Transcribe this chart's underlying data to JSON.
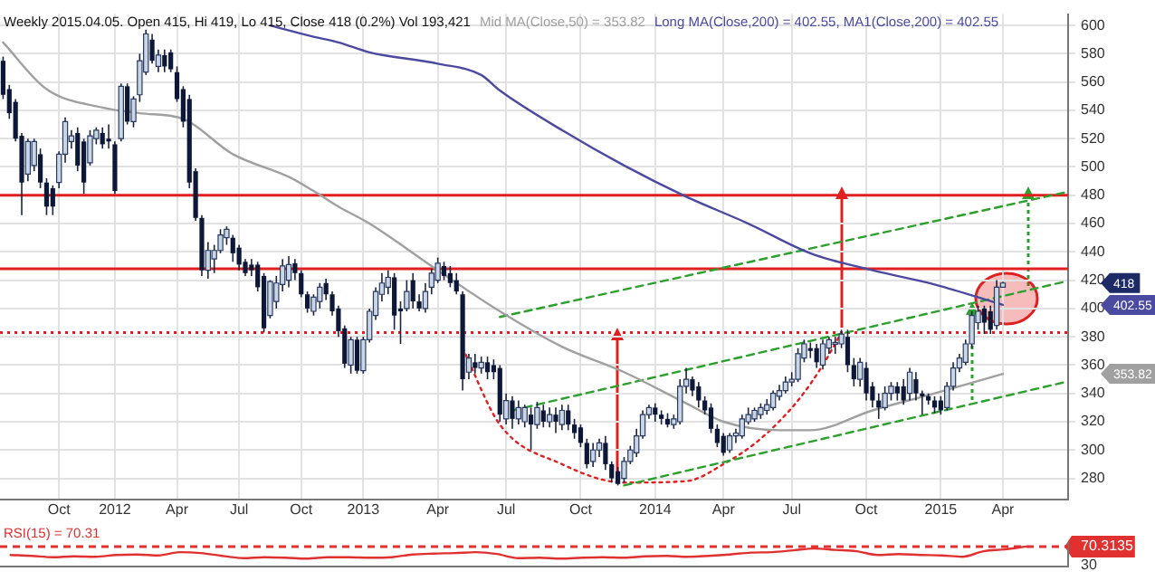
{
  "chart_data": [
    {
      "type": "candlestick",
      "title": "Weekly 2015.04.05. Open 415, Hi 419, Lo 415, Close 418 (0.2%) Vol 193,421",
      "categories": [
        null,
        null,
        null,
        null,
        null,
        null,
        null,
        null,
        null,
        "Oct",
        null,
        null,
        null,
        null,
        null,
        null,
        null,
        null,
        "2012",
        null,
        null,
        null,
        null,
        null,
        null,
        null,
        null,
        null,
        "Apr",
        null,
        null,
        null,
        null,
        null,
        null,
        null,
        null,
        null,
        "Jul",
        null,
        null,
        null,
        null,
        null,
        null,
        null,
        null,
        null,
        "Oct",
        null,
        null,
        null,
        null,
        null,
        null,
        null,
        null,
        null,
        "2013",
        null,
        null,
        null,
        null,
        null,
        null,
        null,
        null,
        null,
        null,
        null,
        "Apr",
        null,
        null,
        null,
        null,
        null,
        null,
        null,
        null,
        null,
        null,
        "Jul",
        null,
        null,
        null,
        null,
        null,
        null,
        null,
        null,
        null,
        null,
        null,
        "Oct",
        null,
        null,
        null,
        null,
        null,
        null,
        null,
        null,
        null,
        null,
        null,
        "2014",
        null,
        null,
        null,
        null,
        null,
        null,
        null,
        null,
        null,
        null,
        "Apr",
        null,
        null,
        null,
        null,
        null,
        null,
        null,
        null,
        null,
        null,
        "Jul",
        null,
        null,
        null,
        null,
        null,
        null,
        null,
        null,
        null,
        null,
        null,
        "Oct",
        null,
        null,
        null,
        null,
        null,
        null,
        null,
        null,
        null,
        null,
        null,
        "2015",
        null,
        null,
        null,
        null,
        null,
        null,
        null,
        null,
        null,
        "Apr",
        null,
        null,
        null,
        null,
        null,
        null,
        null,
        null,
        null,
        null
      ],
      "ohlc": [
        [
          575,
          578,
          548,
          551
        ],
        [
          555,
          558,
          534,
          538
        ],
        [
          546,
          548,
          518,
          520
        ],
        [
          522,
          524,
          466,
          489
        ],
        [
          495,
          520,
          490,
          518
        ],
        [
          501,
          520,
          497,
          518
        ],
        [
          509,
          513,
          485,
          489
        ],
        [
          489,
          492,
          466,
          472
        ],
        [
          485,
          487,
          466,
          472
        ],
        [
          489,
          511,
          485,
          509
        ],
        [
          509,
          535,
          503,
          532
        ],
        [
          518,
          526,
          513,
          522
        ],
        [
          524,
          528,
          497,
          501
        ],
        [
          518,
          520,
          481,
          489
        ],
        [
          503,
          526,
          501,
          522
        ],
        [
          520,
          528,
          516,
          526
        ],
        [
          524,
          528,
          513,
          516
        ],
        [
          520,
          530,
          513,
          518
        ],
        [
          516,
          518,
          481,
          483
        ],
        [
          520,
          559,
          518,
          557
        ],
        [
          557,
          559,
          530,
          532
        ],
        [
          532,
          550,
          528,
          548
        ],
        [
          551,
          580,
          546,
          575
        ],
        [
          567,
          597,
          565,
          594
        ],
        [
          590,
          594,
          573,
          575
        ],
        [
          571,
          583,
          567,
          579
        ],
        [
          579,
          583,
          567,
          571
        ],
        [
          581,
          583,
          567,
          569
        ],
        [
          567,
          571,
          546,
          548
        ],
        [
          555,
          557,
          528,
          532
        ],
        [
          548,
          551,
          485,
          489
        ],
        [
          497,
          499,
          462,
          464
        ],
        [
          464,
          466,
          423,
          427
        ],
        [
          427,
          447,
          421,
          441
        ],
        [
          435,
          445,
          425,
          441
        ],
        [
          441,
          456,
          439,
          452
        ],
        [
          450,
          458,
          445,
          456
        ],
        [
          450,
          452,
          433,
          439
        ],
        [
          443,
          445,
          427,
          431
        ],
        [
          433,
          435,
          423,
          425
        ],
        [
          431,
          435,
          423,
          427
        ],
        [
          431,
          433,
          412,
          415
        ],
        [
          423,
          425,
          383,
          386
        ],
        [
          395,
          420,
          393,
          419
        ],
        [
          405,
          423,
          400,
          418
        ],
        [
          417,
          435,
          412,
          430
        ],
        [
          420,
          437,
          415,
          431
        ],
        [
          432,
          435,
          420,
          425
        ],
        [
          425,
          427,
          408,
          410
        ],
        [
          410,
          412,
          397,
          400
        ],
        [
          398,
          410,
          395,
          408
        ],
        [
          405,
          418,
          400,
          415
        ],
        [
          418,
          421,
          406,
          410
        ],
        [
          410,
          412,
          395,
          398
        ],
        [
          400,
          402,
          380,
          384
        ],
        [
          386,
          388,
          358,
          361
        ],
        [
          360,
          380,
          354,
          378
        ],
        [
          378,
          380,
          354,
          356
        ],
        [
          356,
          380,
          354,
          378
        ],
        [
          378,
          400,
          376,
          398
        ],
        [
          395,
          415,
          392,
          412
        ],
        [
          410,
          425,
          405,
          418
        ],
        [
          415,
          427,
          410,
          422
        ],
        [
          422,
          425,
          385,
          395
        ],
        [
          400,
          405,
          375,
          398
        ],
        [
          400,
          420,
          398,
          412
        ],
        [
          420,
          425,
          400,
          405
        ],
        [
          405,
          410,
          398,
          400
        ],
        [
          400,
          418,
          397,
          412
        ],
        [
          415,
          428,
          410,
          425
        ],
        [
          420,
          436,
          418,
          432
        ],
        [
          430,
          433,
          420,
          423
        ],
        [
          425,
          430,
          415,
          418
        ],
        [
          420,
          425,
          410,
          412
        ],
        [
          410,
          412,
          342,
          350
        ],
        [
          355,
          368,
          350,
          365
        ],
        [
          362,
          368,
          354,
          358
        ],
        [
          358,
          366,
          354,
          362
        ],
        [
          362,
          366,
          350,
          355
        ],
        [
          360,
          364,
          350,
          355
        ],
        [
          358,
          360,
          320,
          325
        ],
        [
          322,
          340,
          318,
          335
        ],
        [
          335,
          338,
          315,
          322
        ],
        [
          322,
          335,
          318,
          330
        ],
        [
          320,
          332,
          316,
          330
        ],
        [
          325,
          330,
          300,
          318
        ],
        [
          318,
          334,
          315,
          330
        ],
        [
          328,
          332,
          316,
          320
        ],
        [
          320,
          330,
          316,
          325
        ],
        [
          325,
          330,
          312,
          320
        ],
        [
          318,
          332,
          314,
          328
        ],
        [
          328,
          332,
          314,
          318
        ],
        [
          318,
          322,
          308,
          312
        ],
        [
          316,
          318,
          302,
          305
        ],
        [
          305,
          308,
          287,
          290
        ],
        [
          292,
          305,
          288,
          300
        ],
        [
          300,
          308,
          295,
          305
        ],
        [
          305,
          310,
          286,
          290
        ],
        [
          290,
          292,
          277,
          280
        ],
        [
          285,
          288,
          275,
          276
        ],
        [
          280,
          295,
          277,
          292
        ],
        [
          292,
          303,
          290,
          300
        ],
        [
          298,
          315,
          295,
          310
        ],
        [
          310,
          328,
          308,
          325
        ],
        [
          325,
          332,
          322,
          330
        ],
        [
          330,
          333,
          320,
          325
        ],
        [
          325,
          328,
          318,
          322
        ],
        [
          322,
          326,
          316,
          318
        ],
        [
          318,
          325,
          315,
          322
        ],
        [
          320,
          350,
          318,
          345
        ],
        [
          345,
          358,
          340,
          350
        ],
        [
          350,
          352,
          338,
          342
        ],
        [
          345,
          348,
          330,
          335
        ],
        [
          335,
          338,
          325,
          328
        ],
        [
          330,
          333,
          312,
          315
        ],
        [
          315,
          318,
          302,
          305
        ],
        [
          310,
          312,
          296,
          298
        ],
        [
          300,
          312,
          298,
          310
        ],
        [
          310,
          315,
          305,
          312
        ],
        [
          310,
          325,
          308,
          322
        ],
        [
          320,
          330,
          318,
          325
        ],
        [
          322,
          330,
          320,
          328
        ],
        [
          325,
          333,
          322,
          330
        ],
        [
          328,
          336,
          325,
          332
        ],
        [
          330,
          342,
          328,
          340
        ],
        [
          338,
          346,
          335,
          342
        ],
        [
          342,
          352,
          340,
          348
        ],
        [
          348,
          355,
          345,
          350
        ],
        [
          350,
          372,
          348,
          368
        ],
        [
          365,
          378,
          362,
          375
        ],
        [
          372,
          376,
          365,
          370
        ],
        [
          372,
          375,
          358,
          362
        ],
        [
          360,
          378,
          357,
          375
        ],
        [
          372,
          380,
          368,
          378
        ],
        [
          375,
          380,
          368,
          376
        ],
        [
          375,
          385,
          372,
          382
        ],
        [
          380,
          385,
          355,
          360
        ],
        [
          360,
          365,
          345,
          350
        ],
        [
          350,
          365,
          345,
          362
        ],
        [
          358,
          362,
          335,
          340
        ],
        [
          345,
          348,
          330,
          335
        ],
        [
          335,
          340,
          322,
          330
        ],
        [
          330,
          345,
          328,
          340
        ],
        [
          340,
          348,
          335,
          345
        ],
        [
          345,
          348,
          335,
          340
        ],
        [
          345,
          350,
          332,
          335
        ],
        [
          340,
          358,
          335,
          355
        ],
        [
          350,
          355,
          335,
          340
        ],
        [
          340,
          342,
          325,
          338
        ],
        [
          338,
          340,
          332,
          335
        ],
        [
          335,
          338,
          326,
          330
        ],
        [
          335,
          338,
          325,
          328
        ],
        [
          330,
          348,
          328,
          345
        ],
        [
          345,
          362,
          342,
          358
        ],
        [
          358,
          368,
          355,
          365
        ],
        [
          362,
          378,
          360,
          375
        ],
        [
          375,
          398,
          372,
          395
        ],
        [
          390,
          402,
          385,
          398
        ],
        [
          400,
          402,
          382,
          390
        ],
        [
          398,
          402,
          382,
          385
        ],
        [
          388,
          420,
          385,
          415
        ],
        [
          415,
          419,
          415,
          418
        ],
        null,
        null,
        null,
        null,
        null,
        null,
        null,
        null,
        null,
        null
      ],
      "series": [
        {
          "name": "Mid MA(Close,50) = 353.82",
          "type": "line",
          "color": "#a0a0a0",
          "values": [
            588,
            null,
            null,
            null,
            null,
            null,
            null,
            555,
            null,
            null,
            null,
            null,
            null,
            null,
            null,
            null,
            542,
            null,
            null,
            null,
            null,
            null,
            538,
            null,
            null,
            null,
            null,
            null,
            null,
            534,
            null,
            null,
            null,
            null,
            null,
            null,
            null,
            509,
            null,
            null,
            null,
            null,
            null,
            null,
            null,
            null,
            493,
            null,
            null,
            null,
            483,
            null,
            null,
            null,
            472,
            null,
            null,
            null,
            null,
            460,
            null,
            null,
            null,
            null,
            null,
            null,
            null,
            null,
            null,
            null,
            427,
            null,
            null,
            null,
            null,
            null,
            null,
            null,
            null,
            null,
            398,
            null,
            null,
            null,
            null,
            null,
            null,
            null,
            null,
            null,
            373,
            null,
            null,
            null,
            null,
            null,
            null,
            null,
            null,
            null,
            355,
            null,
            null,
            null,
            null,
            null,
            null,
            null,
            null,
            null,
            333,
            null,
            null,
            null,
            null,
            null,
            320,
            null,
            null,
            null,
            null,
            null,
            null,
            null,
            null,
            314,
            null,
            null,
            null,
            null,
            314,
            null,
            null,
            null,
            null,
            null,
            null,
            null,
            null,
            null,
            328,
            null,
            null,
            null,
            null,
            null,
            null,
            null,
            null,
            null,
            340,
            null,
            null,
            null,
            null,
            null,
            null,
            null,
            null,
            null,
            null,
            353.82,
            null,
            null,
            null,
            null,
            null,
            null,
            null,
            null,
            null,
            null
          ]
        },
        {
          "name": "Long MA(Close,200) = 402.55, MA1(Close,200) = 402.55",
          "type": "line",
          "color": "#4a4aa0",
          "values": [
            null,
            null,
            null,
            null,
            null,
            null,
            null,
            null,
            null,
            null,
            null,
            null,
            null,
            null,
            null,
            null,
            null,
            null,
            null,
            null,
            null,
            null,
            null,
            null,
            null,
            null,
            null,
            null,
            null,
            null,
            null,
            null,
            null,
            null,
            null,
            null,
            null,
            null,
            null,
            null,
            null,
            null,
            null,
            600,
            null,
            null,
            null,
            null,
            null,
            null,
            592,
            null,
            null,
            null,
            588,
            null,
            null,
            null,
            null,
            581,
            null,
            null,
            null,
            null,
            null,
            null,
            null,
            null,
            null,
            null,
            573,
            null,
            null,
            null,
            null,
            null,
            null,
            565,
            null,
            null,
            554,
            null,
            null,
            null,
            null,
            null,
            null,
            null,
            null,
            null,
            526,
            null,
            null,
            null,
            null,
            null,
            null,
            null,
            null,
            null,
            501,
            null,
            null,
            null,
            null,
            null,
            null,
            null,
            null,
            null,
            479,
            null,
            null,
            null,
            null,
            null,
            null,
            null,
            null,
            null,
            460,
            null,
            null,
            null,
            null,
            null,
            null,
            null,
            null,
            null,
            439,
            null,
            null,
            null,
            null,
            null,
            null,
            null,
            null,
            null,
            427,
            null,
            null,
            null,
            null,
            null,
            null,
            null,
            null,
            null,
            417,
            null,
            null,
            null,
            null,
            null,
            null,
            null,
            null,
            null,
            null,
            402.55,
            null,
            null,
            null,
            null,
            null,
            null,
            null,
            null,
            null,
            null
          ]
        },
        {
          "type": "line",
          "color": "#2ca02c",
          "line_style": "dashed",
          "values": [
            null,
            null,
            null,
            null,
            null,
            null,
            null,
            null,
            null,
            null,
            null,
            null,
            null,
            null,
            null,
            null,
            null,
            null,
            null,
            null,
            null,
            null,
            null,
            null,
            null,
            null,
            null,
            null,
            null,
            null,
            null,
            null,
            null,
            null,
            null,
            null,
            null,
            null,
            null,
            null,
            null,
            null,
            null,
            null,
            null,
            null,
            null,
            null,
            null,
            null,
            null,
            null,
            null,
            null,
            null,
            null,
            null,
            null,
            null,
            null,
            null,
            null,
            null,
            null,
            null,
            null,
            null,
            null,
            null,
            null,
            null,
            null,
            null,
            null,
            null,
            null,
            null,
            null,
            null,
            null,
            394,
            null,
            null,
            null,
            null,
            null,
            null,
            null,
            null,
            null,
            null,
            null,
            null,
            null,
            null,
            null,
            null,
            null,
            null,
            null,
            null,
            null,
            null,
            null,
            null,
            null,
            null,
            null,
            null,
            null,
            null,
            null,
            null,
            null,
            null,
            null,
            null,
            null,
            null,
            null,
            null,
            null,
            null,
            null,
            null,
            null,
            null,
            null,
            null,
            null,
            null,
            null,
            null,
            null,
            null,
            null,
            null,
            null,
            null,
            null,
            null,
            null,
            null,
            null,
            null,
            null,
            null,
            null,
            null,
            null,
            null,
            null,
            null,
            null,
            null,
            null,
            null,
            null,
            null,
            null,
            null,
            null,
            null,
            null,
            null,
            null,
            null,
            null,
            null,
            null,
            null,
            482
          ]
        },
        {
          "type": "line",
          "color": "#2ca02c",
          "line_style": "dashed",
          "values": [
            null,
            null,
            null,
            null,
            null,
            null,
            null,
            null,
            null,
            null,
            null,
            null,
            null,
            null,
            null,
            null,
            null,
            null,
            null,
            null,
            null,
            null,
            null,
            null,
            null,
            null,
            null,
            null,
            null,
            null,
            null,
            null,
            null,
            null,
            null,
            null,
            null,
            null,
            null,
            null,
            null,
            null,
            null,
            null,
            null,
            null,
            null,
            null,
            null,
            null,
            null,
            null,
            null,
            null,
            null,
            null,
            null,
            null,
            null,
            null,
            null,
            null,
            null,
            null,
            null,
            null,
            null,
            null,
            null,
            null,
            null,
            null,
            null,
            null,
            null,
            null,
            null,
            null,
            null,
            null,
            null,
            null,
            328,
            null,
            null,
            null,
            null,
            null,
            null,
            null,
            null,
            null,
            null,
            null,
            null,
            null,
            null,
            null,
            null,
            null,
            null,
            null,
            null,
            null,
            null,
            null,
            null,
            null,
            null,
            null,
            null,
            null,
            null,
            null,
            null,
            null,
            null,
            null,
            null,
            null,
            null,
            null,
            null,
            null,
            null,
            null,
            null,
            null,
            null,
            null,
            null,
            null,
            null,
            null,
            null,
            null,
            null,
            null,
            null,
            null,
            null,
            null,
            null,
            null,
            null,
            null,
            null,
            null,
            null,
            null,
            null,
            null,
            null,
            null,
            null,
            null,
            null,
            null,
            null,
            null,
            null,
            null,
            null,
            null,
            null,
            null,
            null,
            null,
            null,
            null,
            null,
            419
          ]
        },
        {
          "type": "line",
          "color": "#2ca02c",
          "line_style": "dashed",
          "values": [
            null,
            null,
            null,
            null,
            null,
            null,
            null,
            null,
            null,
            null,
            null,
            null,
            null,
            null,
            null,
            null,
            null,
            null,
            null,
            null,
            null,
            null,
            null,
            null,
            null,
            null,
            null,
            null,
            null,
            null,
            null,
            null,
            null,
            null,
            null,
            null,
            null,
            null,
            null,
            null,
            null,
            null,
            null,
            null,
            null,
            null,
            null,
            null,
            null,
            null,
            null,
            null,
            null,
            null,
            null,
            null,
            null,
            null,
            null,
            null,
            null,
            null,
            null,
            null,
            null,
            null,
            null,
            null,
            null,
            null,
            null,
            null,
            null,
            null,
            null,
            null,
            null,
            null,
            null,
            null,
            null,
            null,
            null,
            null,
            null,
            null,
            null,
            null,
            null,
            null,
            null,
            null,
            null,
            null,
            null,
            null,
            null,
            null,
            null,
            null,
            275,
            null,
            null,
            null,
            null,
            null,
            null,
            null,
            null,
            null,
            null,
            null,
            null,
            null,
            null,
            null,
            null,
            null,
            null,
            null,
            null,
            null,
            null,
            null,
            null,
            null,
            null,
            null,
            null,
            null,
            null,
            null,
            null,
            null,
            null,
            null,
            null,
            null,
            null,
            null,
            null,
            null,
            null,
            null,
            null,
            null,
            null,
            null,
            null,
            null,
            null,
            null,
            null,
            null,
            null,
            null,
            null,
            null,
            null,
            null,
            null,
            null,
            null,
            null,
            null,
            null,
            null,
            null,
            null,
            null,
            null,
            348
          ]
        },
        {
          "type": "line",
          "color": "#e02020",
          "line_style": "dotted",
          "values": [
            null,
            null,
            null,
            null,
            null,
            null,
            null,
            null,
            null,
            null,
            null,
            null,
            null,
            null,
            null,
            null,
            null,
            null,
            null,
            null,
            null,
            null,
            null,
            null,
            null,
            null,
            null,
            null,
            null,
            null,
            null,
            null,
            null,
            null,
            null,
            null,
            null,
            null,
            null,
            null,
            null,
            null,
            null,
            null,
            null,
            null,
            null,
            null,
            null,
            null,
            null,
            null,
            null,
            null,
            null,
            null,
            null,
            null,
            null,
            null,
            null,
            null,
            null,
            null,
            null,
            null,
            null,
            null,
            null,
            null,
            null,
            null,
            null,
            null,
            372,
            null,
            null,
            null,
            null,
            null,
            318,
            null,
            null,
            null,
            null,
            null,
            null,
            null,
            null,
            null,
            290,
            null,
            null,
            null,
            null,
            null,
            null,
            null,
            null,
            null,
            277,
            null,
            null,
            null,
            null,
            null,
            null,
            null,
            null,
            null,
            278,
            null,
            null,
            null,
            null,
            null,
            290,
            null,
            null,
            null,
            null,
            null,
            308,
            null,
            null,
            null,
            null,
            null,
            335,
            null,
            null,
            null,
            360,
            null,
            null,
            383,
            null,
            null,
            null,
            null,
            null,
            null,
            null,
            null,
            null,
            null,
            null,
            null,
            null,
            null,
            null,
            null,
            null,
            null,
            null,
            null,
            null,
            null,
            null,
            null,
            null,
            null,
            null,
            null,
            null,
            null,
            null,
            null,
            null,
            null,
            null,
            null
          ]
        }
      ],
      "ylim": [
        265,
        608
      ],
      "yticks": [
        280,
        300,
        320,
        340,
        360,
        380,
        400,
        420,
        440,
        460,
        480,
        500,
        520,
        540,
        560,
        580,
        600
      ],
      "grid": true,
      "ref_lines": [
        {
          "axis": "y",
          "value": 480,
          "color": "#e02020"
        },
        {
          "axis": "y",
          "value": 428,
          "color": "#e02020"
        },
        {
          "axis": "y",
          "value": 383,
          "color": "#e02020",
          "line_style": "dotted"
        }
      ],
      "annotations": [
        "418",
        "353.82",
        "402.55"
      ]
    },
    {
      "type": "line",
      "categories": [
        null,
        null,
        null,
        null,
        null,
        null,
        null,
        null,
        null,
        null,
        null,
        null,
        null,
        null,
        null,
        null,
        null,
        null,
        null,
        null,
        null,
        null,
        null,
        null,
        null,
        null,
        null,
        null,
        null,
        null,
        null,
        null,
        null,
        null,
        null,
        null,
        null,
        null,
        null,
        null,
        null,
        null,
        null,
        null,
        null,
        null,
        null,
        null,
        null
      ],
      "series": [
        {
          "name": "RSI(15) = 70.31",
          "color": "#e03030",
          "values": [
            52,
            50,
            47,
            49,
            48,
            52,
            53,
            51,
            58,
            56,
            50,
            45,
            47,
            46,
            44,
            47,
            47,
            46,
            47,
            53,
            55,
            56,
            58,
            54,
            45,
            46,
            44,
            46,
            47,
            46,
            49,
            50,
            48,
            50,
            53,
            57,
            58,
            62,
            66,
            63,
            60,
            52,
            54,
            52,
            51,
            48,
            60,
            64,
            70.31
          ]
        }
      ],
      "ylim": [
        26,
        78
      ],
      "yticks": [
        30,
        {
          "value": 70.3135,
          "label": "70.3135"
        }
      ],
      "tick_labels": "y",
      "ref_lines": [
        {
          "axis": "y",
          "value": 70.3135,
          "color": "#e03030",
          "line_style": "dashed"
        }
      ]
    }
  ]
}
